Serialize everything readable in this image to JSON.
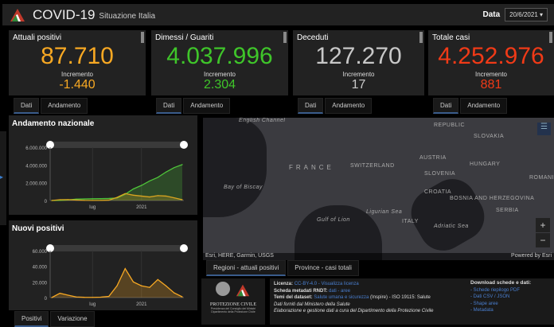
{
  "header": {
    "title": "COVID-19",
    "subtitle": "Situazione Italia",
    "date_label": "Data",
    "date_value": "20/6/2021 ▾"
  },
  "cards": [
    {
      "label": "Attuali positivi",
      "value": "87.710",
      "inc_label": "Incremento",
      "inc_value": "-1.440",
      "color": "#f7a823",
      "tabs": [
        "Dati",
        "Andamento"
      ]
    },
    {
      "label": "Dimessi / Guariti",
      "value": "4.037.996",
      "inc_label": "Incremento",
      "inc_value": "2.304",
      "color": "#3fc52a",
      "tabs": [
        "Dati",
        "Andamento"
      ]
    },
    {
      "label": "Deceduti",
      "value": "127.270",
      "inc_label": "Incremento",
      "inc_value": "17",
      "color": "#c8c8c8",
      "tabs": [
        "Dati",
        "Andamento"
      ]
    },
    {
      "label": "Totale casi",
      "value": "4.252.976",
      "inc_label": "Incremento",
      "inc_value": "881",
      "color": "#f03a17",
      "tabs": [
        "Dati",
        "Andamento"
      ]
    }
  ],
  "chart_data": [
    {
      "type": "area",
      "title": "Andamento nazionale",
      "yticks": [
        "6.000.000",
        "4.000.000",
        "2.000.000",
        "0"
      ],
      "xticks": [
        "lug",
        "2021"
      ],
      "ylim": [
        0,
        6000000
      ],
      "x": [
        "2020-02",
        "2020-03",
        "2020-04",
        "2020-05",
        "2020-06",
        "2020-07",
        "2020-08",
        "2020-09",
        "2020-10",
        "2020-11",
        "2020-12",
        "2021-01",
        "2021-02",
        "2021-03",
        "2021-04",
        "2021-05",
        "2021-06"
      ],
      "series": [
        {
          "name": "Dimessi / Guariti",
          "color": "#4fc53a",
          "values": [
            0,
            10000,
            60000,
            150000,
            180000,
            200000,
            210000,
            230000,
            280000,
            700000,
            1300000,
            1700000,
            2200000,
            2600000,
            3200000,
            3700000,
            4037996
          ]
        },
        {
          "name": "Attuali positivi",
          "color": "#d9a420",
          "values": [
            0,
            90000,
            100000,
            50000,
            20000,
            13000,
            15000,
            40000,
            350000,
            780000,
            600000,
            500000,
            400000,
            550000,
            500000,
            300000,
            87710
          ]
        }
      ]
    },
    {
      "type": "area",
      "title": "Nuovi positivi",
      "yticks": [
        "60.000",
        "40.000",
        "20.000",
        "0"
      ],
      "xticks": [
        "lug",
        "2021"
      ],
      "ylim": [
        0,
        60000
      ],
      "x": [
        "2020-02",
        "2020-03",
        "2020-04",
        "2020-05",
        "2020-06",
        "2020-07",
        "2020-08",
        "2020-09",
        "2020-10",
        "2020-11",
        "2020-12",
        "2021-01",
        "2021-02",
        "2021-03",
        "2021-04",
        "2021-05",
        "2021-06"
      ],
      "series": [
        {
          "name": "Nuovi positivi",
          "color": "#f7a823",
          "values": [
            0,
            5500,
            3000,
            800,
            300,
            250,
            500,
            1500,
            15000,
            37000,
            20000,
            15000,
            13000,
            23000,
            15000,
            6000,
            900
          ]
        }
      ]
    }
  ],
  "left_tabs": [
    "Positivi",
    "Variazione"
  ],
  "map": {
    "labels": [
      "English Channel",
      "REPUBLIC",
      "SLOVAKIA",
      "AUSTRIA",
      "HUNGARY",
      "FRANCE",
      "SWITZERLAND",
      "SLOVENIA",
      "ROMANIA",
      "Bay of Biscay",
      "CROATIA",
      "BOSNIA AND HERZEGOVINA",
      "SERBIA",
      "Ligurian Sea",
      "Gulf of Lion",
      "ITALY",
      "Adriatic Sea"
    ],
    "attribution": "Esri, HERE, Garmin, USGS",
    "powered": "Powered by Esri",
    "zoom_in": "+",
    "zoom_out": "−",
    "tabs": [
      "Regioni - attuali positivi",
      "Province - casi totali"
    ]
  },
  "footer": {
    "logo_text": "PROTEZIONE CIVILE",
    "logo_sub1": "Presidenza del Consiglio dei Ministri",
    "logo_sub2": "Dipartimento della Protezione Civile",
    "licenza_label": "Licenza:",
    "licenza_link": "CC-BY-4.0 - Visualizza licenza",
    "rndt_label": "Scheda metadati RNDT:",
    "rndt_link": "dati - aree",
    "temi_label": "Temi del dataset:",
    "temi_link": "Salute umana e sicurezza",
    "temi_rest": "(Inspire) - ISO 19115: Salute",
    "fonte": "Dati forniti dal Ministero della Salute",
    "elab": "Elaborazione e gestione dati a cura del Dipartimento della Protezione Civile",
    "download_title": "Download schede e dati:",
    "downloads": [
      "- Schede riepilogo PDF",
      "- Dati CSV / JSON",
      "- Shape aree",
      "- Metadata"
    ]
  }
}
